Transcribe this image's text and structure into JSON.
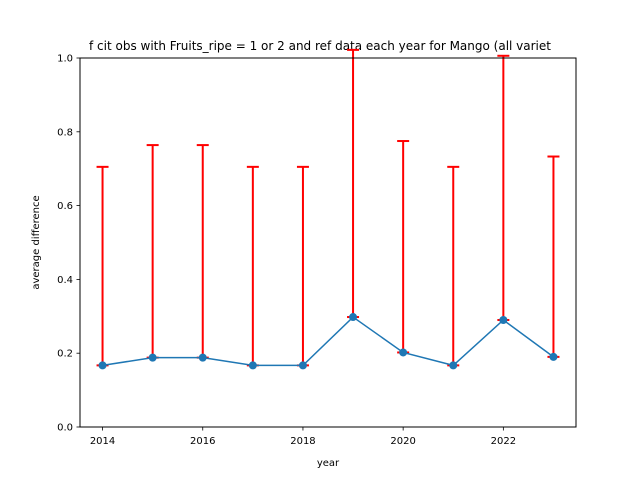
{
  "chart_data": {
    "type": "line",
    "title": "f cit obs with Fruits_ripe = 1 or 2 and ref data each year for Mango (all variet",
    "xlabel": "year",
    "ylabel": "average difference",
    "xlim": [
      2013.55,
      2023.45
    ],
    "ylim": [
      0.0,
      1.0
    ],
    "xticks": [
      2014,
      2016,
      2018,
      2020,
      2022
    ],
    "yticks": [
      0.0,
      0.2,
      0.4,
      0.6,
      0.8,
      1.0
    ],
    "grid": false,
    "series": [
      {
        "x": [
          2014,
          2015,
          2016,
          2017,
          2018,
          2019,
          2020,
          2021,
          2022,
          2023
        ],
        "values": [
          0.167,
          0.188,
          0.188,
          0.167,
          0.167,
          0.298,
          0.202,
          0.167,
          0.29,
          0.19
        ],
        "error_lower": [
          0.0,
          0.0,
          0.0,
          0.0,
          0.0,
          0.0,
          0.0,
          0.0,
          0.0,
          0.0
        ],
        "error_upper": [
          0.538,
          0.576,
          0.576,
          0.538,
          0.538,
          0.724,
          0.573,
          0.538,
          0.716,
          0.543
        ],
        "color": "#1f77b4",
        "error_color": "#ff0000"
      }
    ]
  }
}
